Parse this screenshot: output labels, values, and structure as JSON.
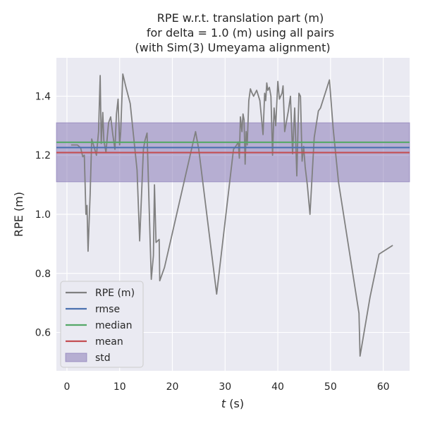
{
  "chart_data": {
    "type": "line",
    "title": [
      "RPE w.r.t. translation part (m)",
      "for delta = 1.0 (m) using all pairs",
      "(with Sim(3) Umeyama alignment)"
    ],
    "xlabel_italic": "t",
    "xlabel_unit": " (s)",
    "ylabel": "RPE (m)",
    "xlim": [
      -2,
      65
    ],
    "ylim": [
      0.47,
      1.53
    ],
    "xticks": [
      0,
      10,
      20,
      30,
      40,
      50,
      60
    ],
    "yticks": [
      0.6,
      0.8,
      1.0,
      1.2,
      1.4
    ],
    "ytick_labels": [
      "0.6",
      "0.8",
      "1.0",
      "1.2",
      "1.4"
    ],
    "grid": true,
    "legend_position": "lower-left",
    "colors": {
      "background": "#EAEAF2",
      "grid": "#FFFFFF",
      "rpe": "#808080",
      "rmse": "#4C72B0",
      "median": "#55A868",
      "mean": "#C44E52",
      "std": "#8172B2"
    },
    "series": [
      {
        "name": "RPE (m)",
        "x": [
          0.8,
          2.0,
          2.6,
          3.0,
          3.3,
          3.6,
          3.8,
          4.0,
          4.4,
          4.7,
          5.2,
          5.6,
          6.0,
          6.3,
          6.5,
          6.8,
          7.0,
          7.4,
          7.9,
          8.3,
          8.7,
          9.1,
          9.4,
          9.7,
          10.0,
          10.2,
          10.6,
          11.2,
          12.0,
          13.3,
          13.8,
          14.5,
          14.8,
          15.2,
          15.6,
          16.0,
          16.4,
          16.6,
          16.9,
          17.5,
          17.6,
          18.5,
          24.4,
          25.0,
          28.4,
          31.6,
          32.2,
          32.5,
          32.7,
          32.9,
          33.2,
          33.4,
          33.6,
          33.8,
          34.0,
          34.2,
          34.5,
          34.8,
          35.0,
          35.4,
          36.0,
          36.6,
          37.2,
          37.5,
          37.7,
          37.9,
          38.1,
          38.4,
          38.7,
          39.0,
          39.3,
          39.6,
          40.0,
          40.3,
          40.8,
          41.0,
          41.3,
          42.0,
          42.4,
          42.8,
          43.2,
          43.6,
          44.0,
          44.3,
          44.6,
          44.9,
          45.2,
          45.6,
          46.1,
          46.9,
          47.7,
          48.1,
          49.8,
          50.5,
          51.5,
          55.4,
          55.6,
          57.5,
          59.2,
          61.8
        ],
        "y": [
          1.235,
          1.235,
          1.225,
          1.195,
          1.2,
          1.0,
          1.03,
          0.875,
          1.07,
          1.255,
          1.225,
          1.2,
          1.28,
          1.47,
          1.24,
          1.345,
          1.25,
          1.21,
          1.31,
          1.33,
          1.27,
          1.22,
          1.34,
          1.39,
          1.235,
          1.28,
          1.475,
          1.43,
          1.375,
          1.15,
          0.91,
          1.22,
          1.25,
          1.275,
          1.02,
          0.78,
          0.86,
          1.1,
          0.905,
          0.915,
          0.775,
          0.82,
          1.28,
          1.22,
          0.73,
          1.22,
          1.235,
          1.245,
          1.19,
          1.33,
          1.28,
          1.34,
          1.32,
          1.17,
          1.28,
          1.235,
          1.385,
          1.425,
          1.415,
          1.4,
          1.42,
          1.385,
          1.27,
          1.41,
          1.385,
          1.445,
          1.42,
          1.43,
          1.4,
          1.2,
          1.36,
          1.3,
          1.45,
          1.39,
          1.41,
          1.435,
          1.28,
          1.35,
          1.4,
          1.205,
          1.36,
          1.13,
          1.41,
          1.4,
          1.18,
          1.23,
          1.16,
          1.1,
          1.0,
          1.26,
          1.35,
          1.36,
          1.455,
          1.29,
          1.11,
          0.665,
          0.52,
          0.72,
          0.865,
          0.895
        ]
      }
    ],
    "stats": [
      {
        "name": "rmse",
        "value": 1.226
      },
      {
        "name": "median",
        "value": 1.244
      },
      {
        "name": "mean",
        "value": 1.209
      }
    ],
    "std_band": {
      "name": "std",
      "min": 1.11,
      "max": 1.31
    }
  }
}
